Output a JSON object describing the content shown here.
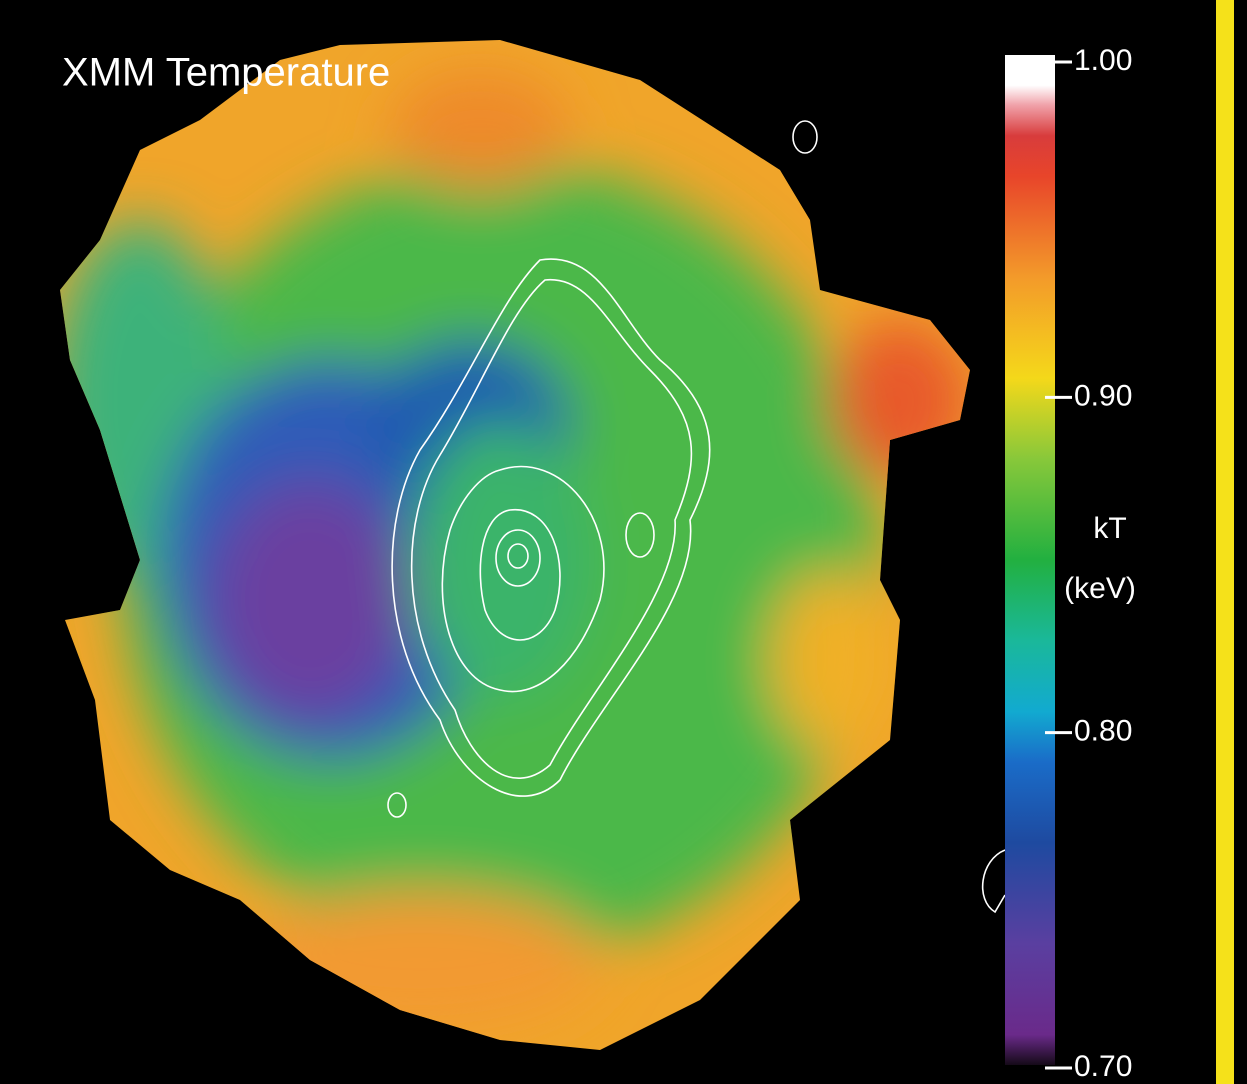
{
  "title": "XMM Temperature",
  "colorbar": {
    "label_line1": "kT",
    "label_line2": "(keV)",
    "lim": [
      0.7,
      1.0
    ],
    "ticks": [
      {
        "value": 1.0,
        "label": "1.00"
      },
      {
        "value": 0.9,
        "label": "0.90"
      },
      {
        "value": 0.8,
        "label": "0.80"
      },
      {
        "value": 0.7,
        "label": "0.70"
      }
    ]
  }
}
